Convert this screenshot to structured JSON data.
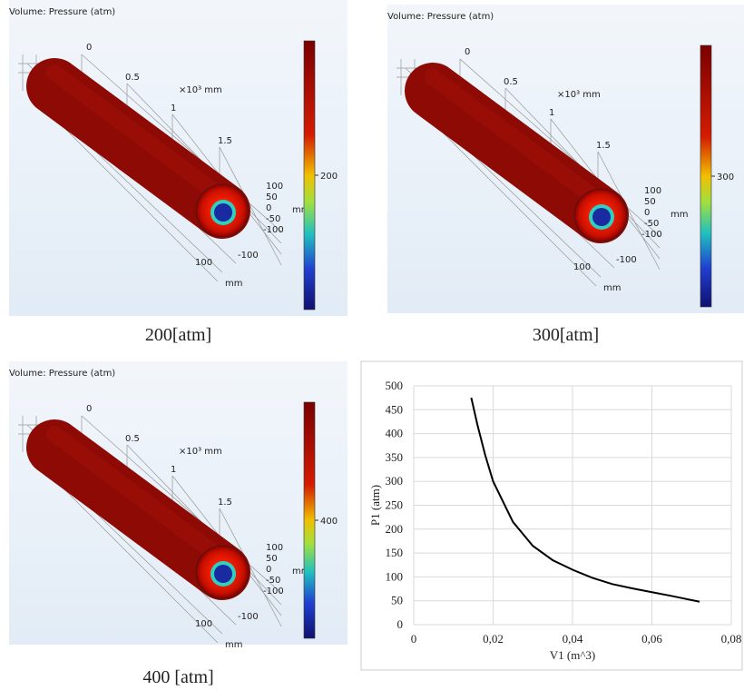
{
  "panels": [
    {
      "title": "Volume: Pressure (atm)",
      "caption": "200[atm]",
      "colorbar_tick": "200",
      "axis_texts": [
        "0",
        "0.5",
        "×10³ mm",
        "1",
        "1.5",
        "100",
        "50",
        "0",
        "-50",
        "-100",
        "mm",
        "100",
        "-100",
        "mm"
      ]
    },
    {
      "title": "Volume: Pressure (atm)",
      "caption": "300[atm]",
      "colorbar_tick": "300",
      "axis_texts": [
        "0",
        "0.5",
        "×10³ mm",
        "1",
        "1.5",
        "100",
        "50",
        "0",
        "-50",
        "-100",
        "mm",
        "100",
        "-100",
        "mm"
      ]
    },
    {
      "title": "Volume: Pressure (atm)",
      "caption": "400 [atm]",
      "colorbar_tick": "400",
      "axis_texts": [
        "0",
        "0.5",
        "×10³ mm",
        "1",
        "1.5",
        "100",
        "50",
        "0",
        "-50",
        "-100",
        "mm",
        "100",
        "-100",
        "mm"
      ]
    }
  ],
  "chart_data": {
    "type": "line",
    "xlabel": "V1 (m^3)",
    "ylabel": "P1 (atm)",
    "x": [
      0.0145,
      0.016,
      0.018,
      0.02,
      0.025,
      0.03,
      0.035,
      0.04,
      0.045,
      0.05,
      0.055,
      0.06,
      0.065,
      0.072
    ],
    "series": [
      {
        "color": "#000000",
        "values": [
          475,
          420,
          355,
          300,
          215,
          165,
          135,
          115,
          98,
          85,
          76,
          68,
          60,
          48
        ]
      }
    ],
    "xlim": [
      0,
      0.08
    ],
    "ylim": [
      0,
      500
    ],
    "xticks": [
      0,
      {
        "value": 0.02,
        "label": "0,02"
      },
      {
        "value": 0.04,
        "label": "0,04"
      },
      {
        "value": 0.06,
        "label": "0,06"
      },
      {
        "value": 0.08,
        "label": "0,08"
      }
    ],
    "yticks": [
      0,
      50,
      100,
      150,
      200,
      250,
      300,
      350,
      400,
      450,
      500
    ],
    "grid": true
  }
}
